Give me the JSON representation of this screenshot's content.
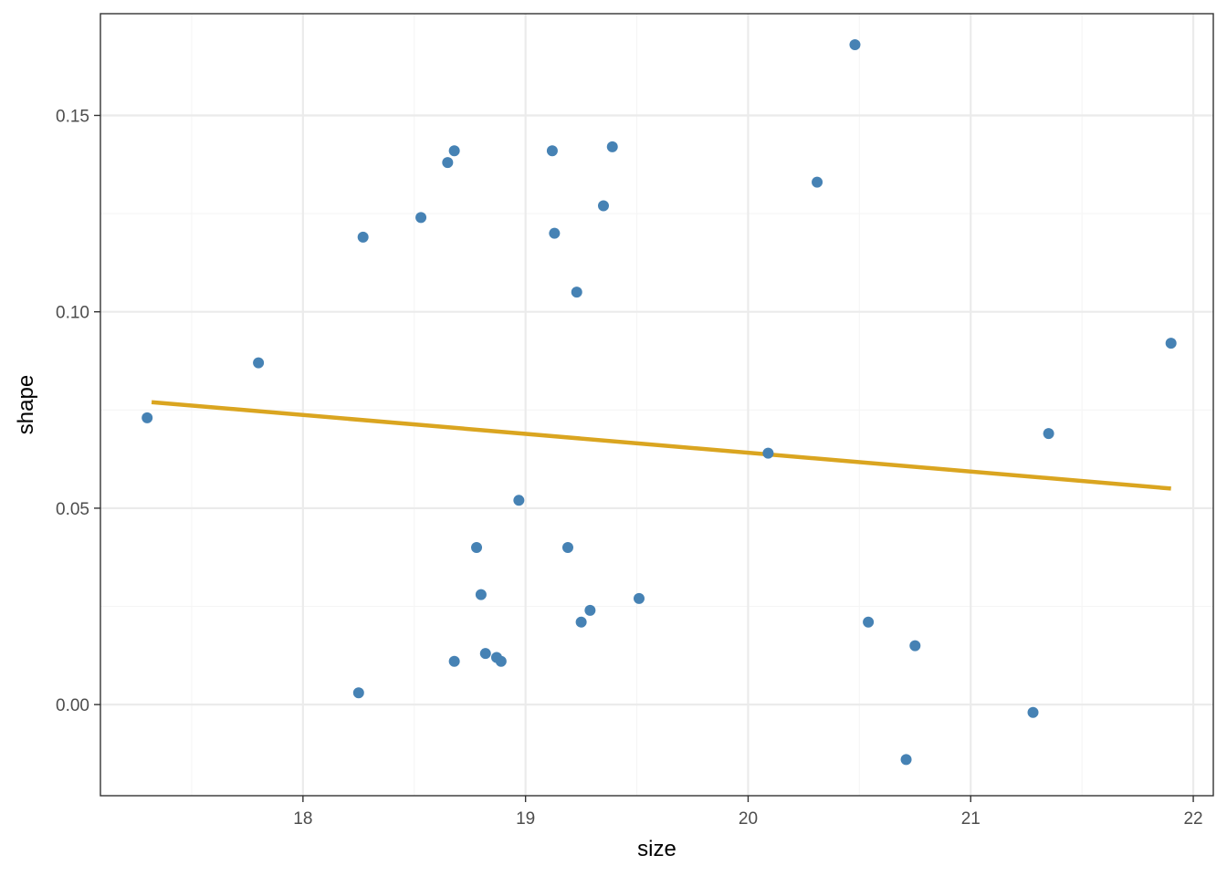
{
  "chart_data": {
    "type": "scatter",
    "title": "",
    "xlabel": "size",
    "ylabel": "shape",
    "xlim": [
      17.09,
      22.09
    ],
    "ylim": [
      -0.0232,
      0.1759
    ],
    "grid": true,
    "x_major_ticks": [
      18,
      19,
      20,
      21,
      22
    ],
    "x_minor_ticks": [
      17.5,
      18.5,
      19.5,
      20.5,
      21.5
    ],
    "y_major_ticks": [
      0.0,
      0.05,
      0.1,
      0.15
    ],
    "y_minor_ticks": [
      0.025,
      0.075,
      0.125
    ],
    "x_tick_labels": [
      "18",
      "19",
      "20",
      "21",
      "22"
    ],
    "y_tick_labels": [
      "0.00",
      "0.05",
      "0.10",
      "0.15"
    ],
    "points": [
      {
        "x": 17.3,
        "y": 0.073
      },
      {
        "x": 17.8,
        "y": 0.087
      },
      {
        "x": 18.25,
        "y": 0.003
      },
      {
        "x": 18.27,
        "y": 0.119
      },
      {
        "x": 18.53,
        "y": 0.124
      },
      {
        "x": 18.65,
        "y": 0.138
      },
      {
        "x": 18.68,
        "y": 0.141
      },
      {
        "x": 18.68,
        "y": 0.011
      },
      {
        "x": 18.78,
        "y": 0.04
      },
      {
        "x": 18.8,
        "y": 0.028
      },
      {
        "x": 18.82,
        "y": 0.013
      },
      {
        "x": 18.87,
        "y": 0.012
      },
      {
        "x": 18.89,
        "y": 0.011
      },
      {
        "x": 18.97,
        "y": 0.052
      },
      {
        "x": 19.12,
        "y": 0.141
      },
      {
        "x": 19.13,
        "y": 0.12
      },
      {
        "x": 19.19,
        "y": 0.04
      },
      {
        "x": 19.23,
        "y": 0.105
      },
      {
        "x": 19.25,
        "y": 0.021
      },
      {
        "x": 19.29,
        "y": 0.024
      },
      {
        "x": 19.35,
        "y": 0.127
      },
      {
        "x": 19.39,
        "y": 0.142
      },
      {
        "x": 19.51,
        "y": 0.027
      },
      {
        "x": 20.09,
        "y": 0.064
      },
      {
        "x": 20.31,
        "y": 0.133
      },
      {
        "x": 20.48,
        "y": 0.168
      },
      {
        "x": 20.54,
        "y": 0.021
      },
      {
        "x": 20.71,
        "y": -0.014
      },
      {
        "x": 20.75,
        "y": 0.015
      },
      {
        "x": 21.28,
        "y": -0.002
      },
      {
        "x": 21.35,
        "y": 0.069
      },
      {
        "x": 21.9,
        "y": 0.092
      }
    ],
    "trend_line": {
      "type": "linear",
      "x": [
        17.32,
        21.9
      ],
      "y": [
        0.077,
        0.055
      ]
    },
    "colors": {
      "points": "#4682B4",
      "trend_line": "#DAA520",
      "grid_major": "#EBEBEB",
      "grid_minor": "#F5F5F5",
      "panel_border": "#333333",
      "tick": "#333333"
    }
  }
}
